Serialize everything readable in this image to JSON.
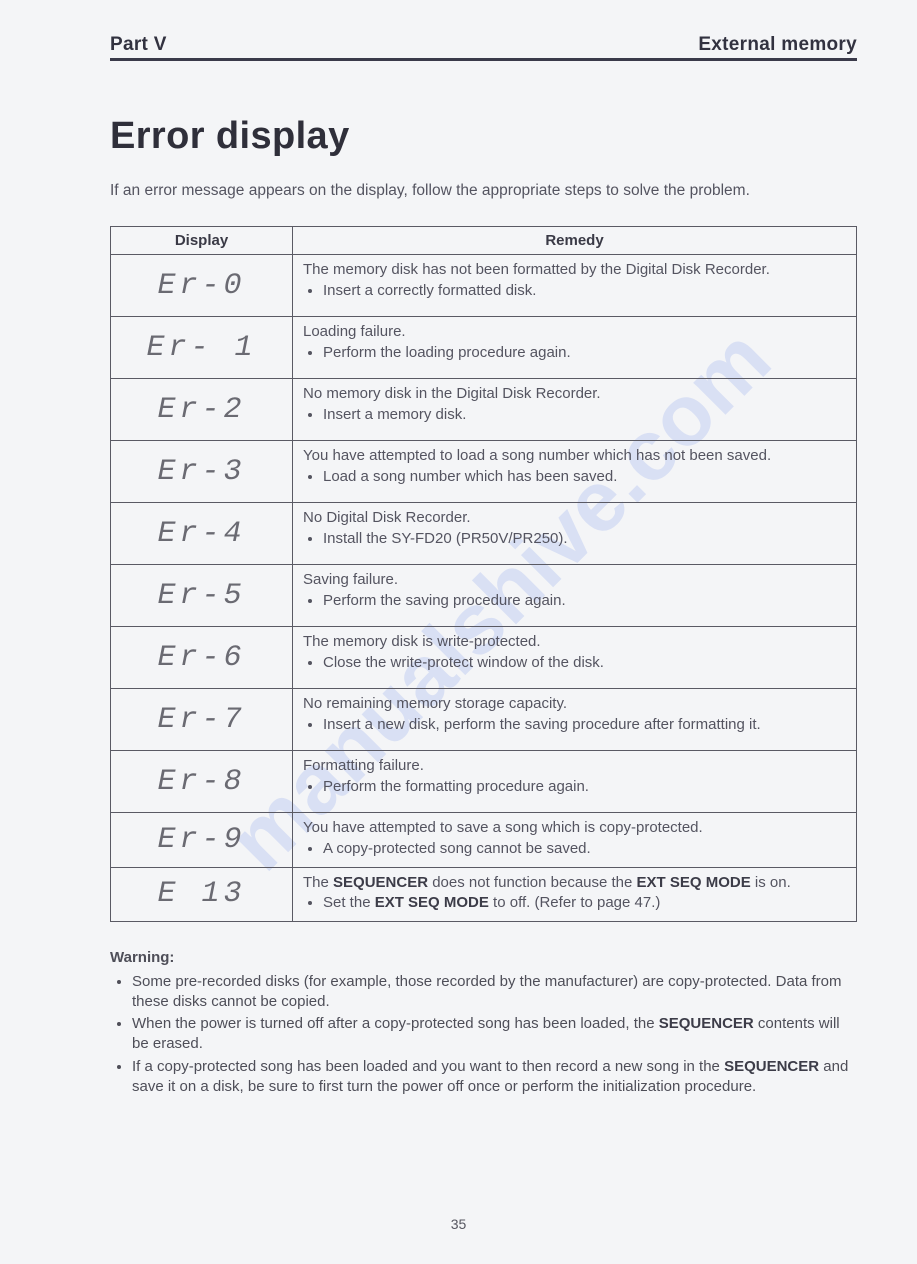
{
  "header": {
    "left": "Part V",
    "right": "External memory"
  },
  "title": "Error display",
  "intro": "If an error message appears on the display, follow the appropriate steps to solve the problem.",
  "table": {
    "col_display": "Display",
    "col_remedy": "Remedy",
    "rows": [
      {
        "code": "Er-0",
        "msg": "The memory disk has not been formatted by the Digital Disk Recorder.",
        "action": "Insert a correctly formatted disk."
      },
      {
        "code": "Er- 1",
        "msg": "Loading failure.",
        "action": "Perform the loading procedure again."
      },
      {
        "code": "Er-2",
        "msg": "No memory disk in the Digital Disk Recorder.",
        "action": "Insert a memory disk."
      },
      {
        "code": "Er-3",
        "msg": "You have attempted to load a song number which has not been saved.",
        "action": "Load a song number which has been saved."
      },
      {
        "code": "Er-4",
        "msg": "No Digital Disk Recorder.",
        "action": "Install the SY-FD20 (PR50V/PR250)."
      },
      {
        "code": "Er-5",
        "msg": "Saving failure.",
        "action": "Perform the saving procedure again."
      },
      {
        "code": "Er-6",
        "msg": "The memory disk is write-protected.",
        "action": "Close the write-protect window of the disk."
      },
      {
        "code": "Er-7",
        "msg": "No remaining memory storage capacity.",
        "action": "Insert a new disk, perform the saving procedure after formatting it."
      },
      {
        "code": "Er-8",
        "msg": "Formatting failure.",
        "action": "Perform the formatting procedure again."
      },
      {
        "code": "Er-9",
        "msg": "You have attempted to save a song which is copy-protected.",
        "action": "A copy-protected song cannot be saved."
      }
    ],
    "last_row": {
      "code": "E 13",
      "msg_pre": "The ",
      "msg_b1": "SEQUENCER",
      "msg_mid": " does not function because the ",
      "msg_b2": "EXT SEQ MODE",
      "msg_post": " is on.",
      "act_pre": "Set the ",
      "act_b": "EXT SEQ MODE",
      "act_post": " to off. (Refer to page 47.)"
    }
  },
  "warning": {
    "title": "Warning:",
    "items": [
      {
        "pre": "Some pre-recorded disks (for example, those recorded by the manufacturer) are copy-protected. Data from these disks cannot be copied."
      },
      {
        "pre": "When the power is turned off after a copy-protected song has been loaded, the ",
        "b": "SEQUENCER",
        "post": " contents will be erased."
      },
      {
        "pre": "If a copy-protected song has been loaded and you want to then record a new song in the ",
        "b": "SEQUENCER",
        "post": " and save it on a disk, be sure to first turn the power off once or perform the initialization procedure."
      }
    ]
  },
  "watermark": "manualshive.com",
  "page_number": "35",
  "colors": {
    "page_bg": "#f4f5f7",
    "text": "#4a4a52",
    "rule": "#3a3a4a",
    "watermark": "rgba(80,120,230,0.16)"
  }
}
